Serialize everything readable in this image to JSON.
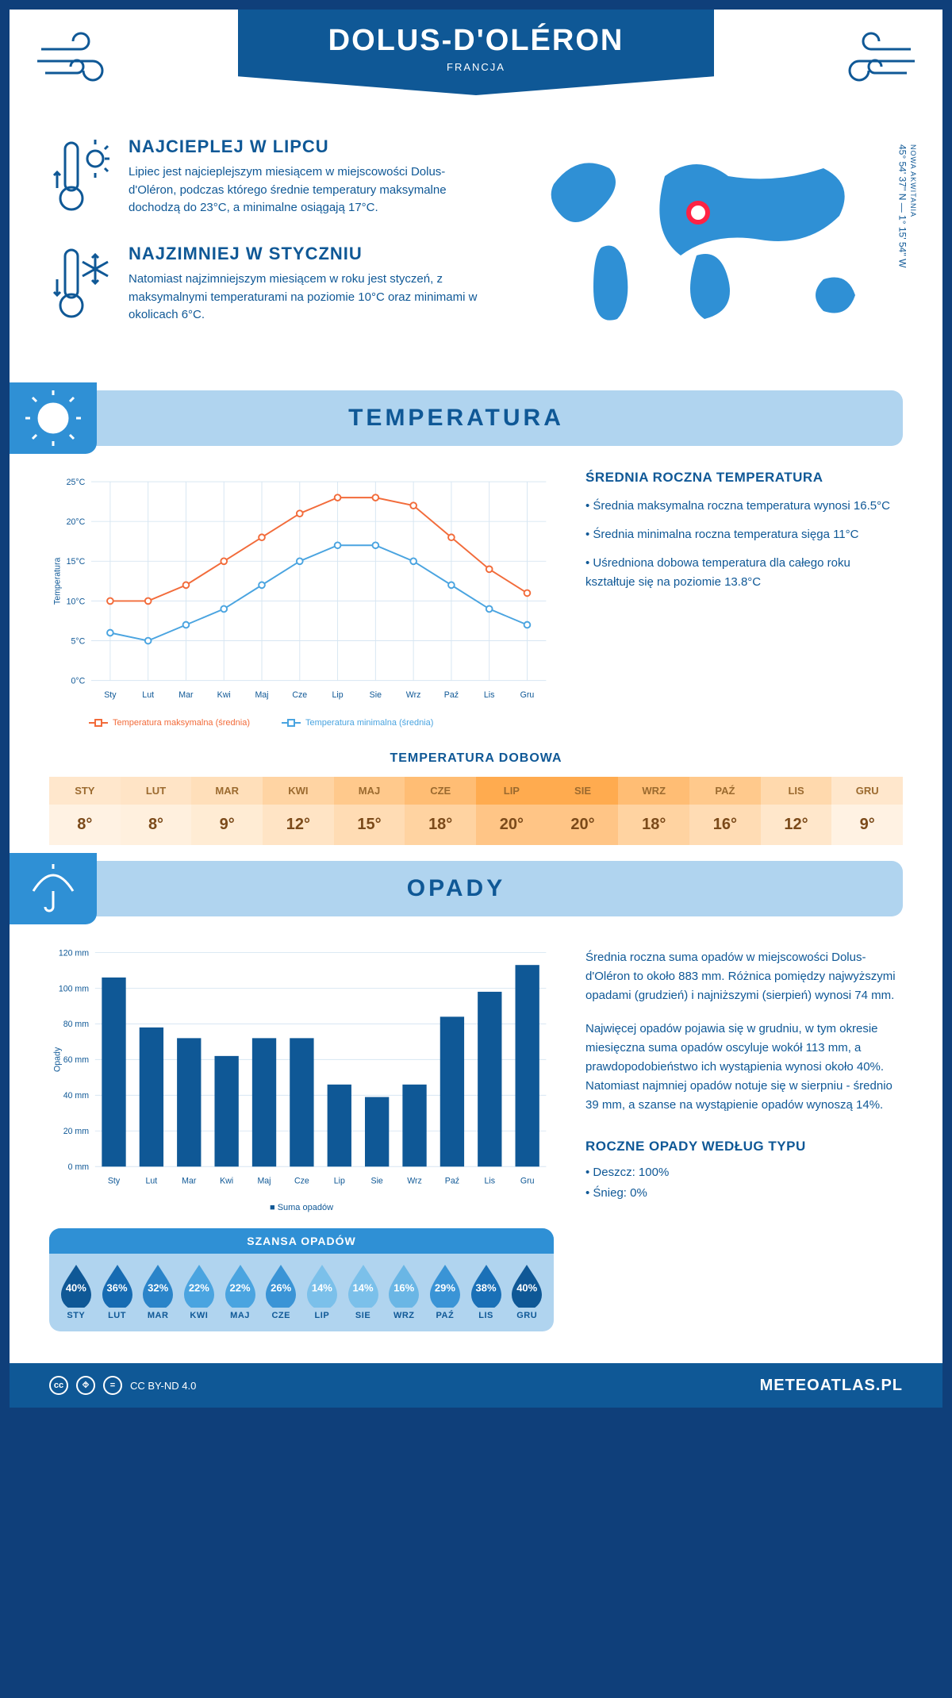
{
  "header": {
    "title": "DOLUS-D'OLÉRON",
    "subtitle": "FRANCJA",
    "coords": "45° 54' 37'' N — 1° 15' 54'' W",
    "region": "NOWA AKWITANIA"
  },
  "facts": {
    "hot": {
      "title": "NAJCIEPLEJ W LIPCU",
      "text": "Lipiec jest najcieplejszym miesiącem w miejscowości Dolus-d'Oléron, podczas którego średnie temperatury maksymalne dochodzą do 23°C, a minimalne osiągają 17°C."
    },
    "cold": {
      "title": "NAJZIMNIEJ W STYCZNIU",
      "text": "Natomiast najzimniejszym miesiącem w roku jest styczeń, z maksymalnymi temperaturami na poziomie 10°C oraz minimami w okolicach 6°C."
    }
  },
  "sections": {
    "temp_title": "TEMPERATURA",
    "precip_title": "OPADY"
  },
  "temp_chart": {
    "type": "line",
    "months": [
      "Sty",
      "Lut",
      "Mar",
      "Kwi",
      "Maj",
      "Cze",
      "Lip",
      "Sie",
      "Wrz",
      "Paź",
      "Lis",
      "Gru"
    ],
    "ylabel": "Temperatura",
    "ylim": [
      0,
      25
    ],
    "ytick_step": 5,
    "ytick_labels": [
      "0°C",
      "5°C",
      "10°C",
      "15°C",
      "20°C",
      "25°C"
    ],
    "grid_color": "#d7e6f2",
    "background_color": "#ffffff",
    "series": {
      "max": {
        "label": "Temperatura maksymalna (średnia)",
        "color": "#f26b3a",
        "values": [
          10,
          10,
          12,
          15,
          18,
          21,
          23,
          23,
          22,
          18,
          14,
          11
        ]
      },
      "min": {
        "label": "Temperatura minimalna (średnia)",
        "color": "#4aa4e0",
        "values": [
          6,
          5,
          7,
          9,
          12,
          15,
          17,
          17,
          15,
          12,
          9,
          7
        ]
      }
    }
  },
  "temp_summary": {
    "title": "ŚREDNIA ROCZNA TEMPERATURA",
    "items": [
      "Średnia maksymalna roczna temperatura wynosi 16.5°C",
      "Średnia minimalna roczna temperatura sięga 11°C",
      "Uśredniona dobowa temperatura dla całego roku kształtuje się na poziomie 13.8°C"
    ]
  },
  "daily_temp": {
    "title": "TEMPERATURA DOBOWA",
    "months": [
      "STY",
      "LUT",
      "MAR",
      "KWI",
      "MAJ",
      "CZE",
      "LIP",
      "SIE",
      "WRZ",
      "PAŹ",
      "LIS",
      "GRU"
    ],
    "values": [
      "8°",
      "8°",
      "9°",
      "12°",
      "15°",
      "18°",
      "20°",
      "20°",
      "18°",
      "16°",
      "12°",
      "9°"
    ],
    "header_colors": [
      "#ffe7cc",
      "#ffe4c6",
      "#ffdfba",
      "#ffd4a3",
      "#ffc98c",
      "#ffbd74",
      "#ffab4f",
      "#ffab4f",
      "#ffbd74",
      "#ffc98c",
      "#ffd9ad",
      "#ffe7cc"
    ],
    "cell_colors": [
      "#fff2e3",
      "#fff0de",
      "#ffecD4",
      "#ffe4c5",
      "#ffdcb4",
      "#ffd3a1",
      "#ffc586",
      "#ffc586",
      "#ffd3a1",
      "#ffdcb4",
      "#ffe7cb",
      "#fff2e3"
    ]
  },
  "precip_chart": {
    "type": "bar",
    "months": [
      "Sty",
      "Lut",
      "Mar",
      "Kwi",
      "Maj",
      "Cze",
      "Lip",
      "Sie",
      "Wrz",
      "Paź",
      "Lis",
      "Gru"
    ],
    "ylabel": "Opady",
    "ylim": [
      0,
      120
    ],
    "ytick_step": 20,
    "ytick_labels": [
      "0 mm",
      "20 mm",
      "40 mm",
      "60 mm",
      "80 mm",
      "100 mm",
      "120 mm"
    ],
    "bar_color": "#0f5896",
    "grid_color": "#d7e6f2",
    "values": [
      106,
      78,
      72,
      62,
      72,
      72,
      46,
      39,
      46,
      84,
      98,
      113
    ],
    "legend": "Suma opadów"
  },
  "chance": {
    "title": "SZANSA OPADÓW",
    "months": [
      "STY",
      "LUT",
      "MAR",
      "KWI",
      "MAJ",
      "CZE",
      "LIP",
      "SIE",
      "WRZ",
      "PAŹ",
      "LIS",
      "GRU"
    ],
    "values": [
      "40%",
      "36%",
      "32%",
      "22%",
      "22%",
      "26%",
      "14%",
      "14%",
      "16%",
      "29%",
      "38%",
      "40%"
    ],
    "drop_colors": [
      "#0f5896",
      "#166bb2",
      "#2a84c9",
      "#4aa4e0",
      "#4aa4e0",
      "#3a94d6",
      "#7bc0ea",
      "#7bc0ea",
      "#6ab6e5",
      "#3a94d6",
      "#1a70b7",
      "#0f5896"
    ]
  },
  "precip_text": {
    "p1": "Średnia roczna suma opadów w miejscowości Dolus-d'Oléron to około 883 mm. Różnica pomiędzy najwyższymi opadami (grudzień) i najniższymi (sierpień) wynosi 74 mm.",
    "p2": "Najwięcej opadów pojawia się w grudniu, w tym okresie miesięczna suma opadów oscyluje wokół 113 mm, a prawdopodobieństwo ich wystąpienia wynosi około 40%. Natomiast najmniej opadów notuje się w sierpniu - średnio 39 mm, a szanse na wystąpienie opadów wynoszą 14%.",
    "type_title": "ROCZNE OPADY WEDŁUG TYPU",
    "types": [
      "Deszcz: 100%",
      "Śnieg: 0%"
    ]
  },
  "footer": {
    "license": "CC BY-ND 4.0",
    "site": "METEOATLAS.PL"
  }
}
